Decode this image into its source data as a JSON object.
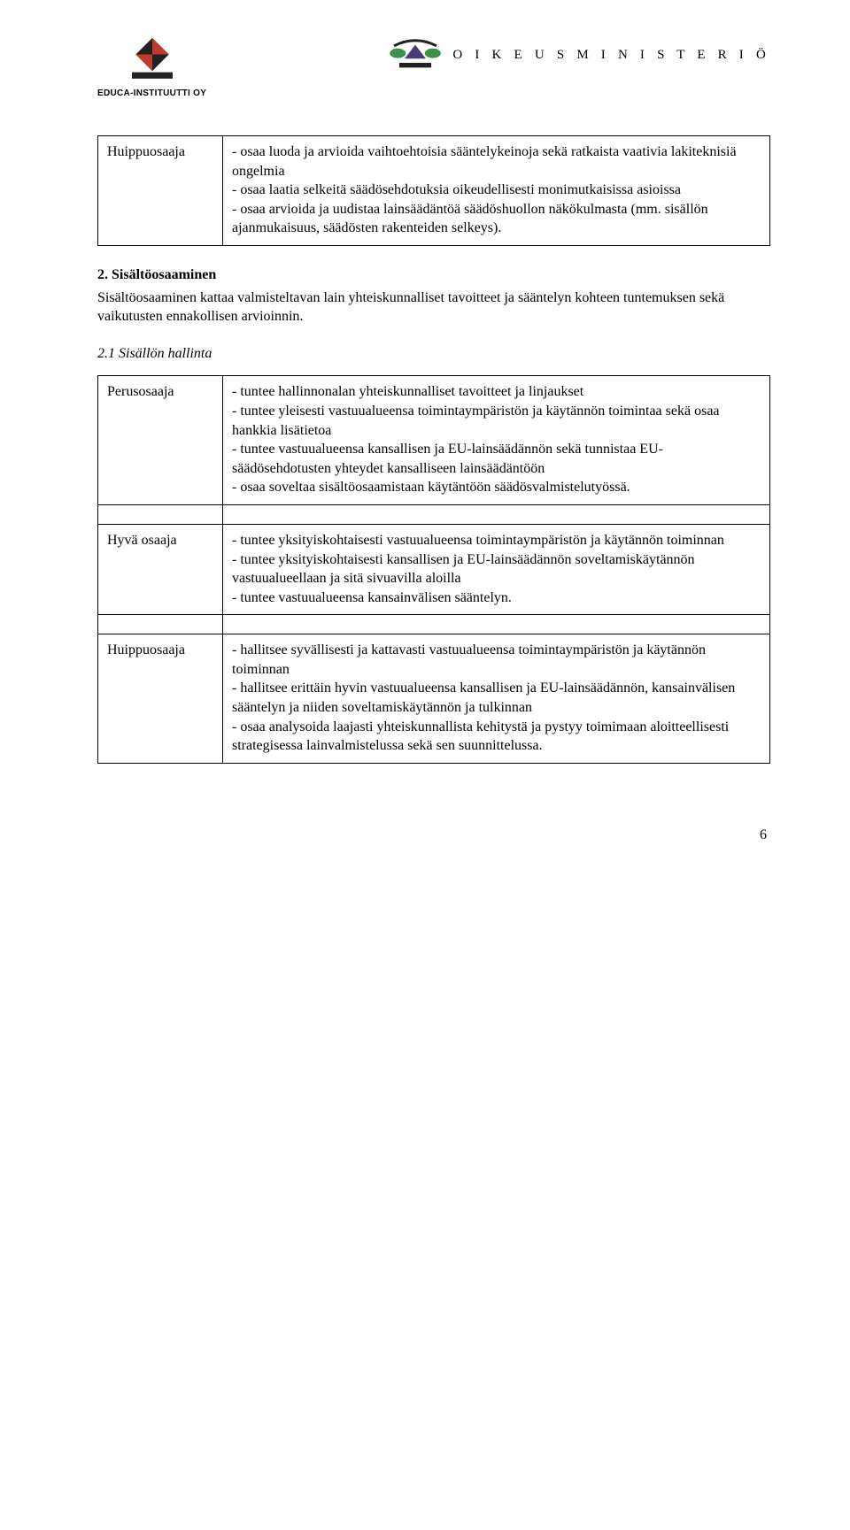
{
  "header": {
    "left_logo_text": "EDUCA-INSTITUUTTI OY",
    "left_logo_colors": {
      "dark": "#222222",
      "red": "#c13a2f"
    },
    "right_logo_text": "O I K E U S M I N I S T E R I Ö",
    "right_logo_colors": {
      "purple": "#4b3a78",
      "green": "#3f8f4a",
      "dark": "#222222"
    }
  },
  "top_table": {
    "label": "Huippuosaaja",
    "body": "- osaa luoda ja arvioida vaihtoehtoisia sääntelykeinoja sekä ratkaista vaativia lakiteknisiä ongelmia\n- osaa laatia selkeitä säädösehdotuksia oikeudellisesti monimutkaisissa asioissa\n- osaa arvioida ja uudistaa lainsäädäntöä säädöshuollon näkökulmasta (mm. sisällön ajanmukaisuus, säädösten rakenteiden selkeys)."
  },
  "section": {
    "title": "2. Sisältöosaaminen",
    "text": "Sisältöosaaminen kattaa valmisteltavan lain yhteiskunnalliset tavoitteet ja sääntelyn kohteen tuntemuksen sekä vaikutusten ennakollisen arvioinnin."
  },
  "subsection": {
    "title": "2.1 Sisällön hallinta"
  },
  "levels_table": [
    {
      "label": "Perusosaaja",
      "body": "- tuntee hallinnonalan yhteiskunnalliset tavoitteet ja linjaukset\n- tuntee yleisesti vastuualueensa toimintaympäristön ja käytännön toimintaa sekä osaa hankkia lisätietoa\n- tuntee vastuualueensa kansallisen ja EU-lainsäädännön sekä tunnistaa EU-säädösehdotusten yhteydet kansalliseen lainsäädäntöön\n- osaa soveltaa sisältöosaamistaan käytäntöön säädösvalmistelutyössä."
    },
    {
      "label": "Hyvä osaaja",
      "body": "- tuntee yksityiskohtaisesti vastuualueensa toimintaympäristön ja käytännön toiminnan\n- tuntee yksityiskohtaisesti kansallisen ja EU-lainsäädännön soveltamiskäytännön vastuualueellaan ja sitä sivuavilla aloilla\n- tuntee vastuualueensa kansainvälisen sääntelyn."
    },
    {
      "label": "Huippuosaaja",
      "body": "- hallitsee syvällisesti ja kattavasti vastuualueensa toimintaympäristön ja käytännön toiminnan\n- hallitsee erittäin hyvin vastuualueensa kansallisen ja EU-lainsäädännön, kansainvälisen sääntelyn ja niiden soveltamiskäytännön ja tulkinnan\n- osaa analysoida laajasti yhteiskunnallista kehitystä ja pystyy toimimaan aloitteellisesti strategisessa lainvalmistelussa sekä sen suunnittelussa."
    }
  ],
  "page_number": "6"
}
